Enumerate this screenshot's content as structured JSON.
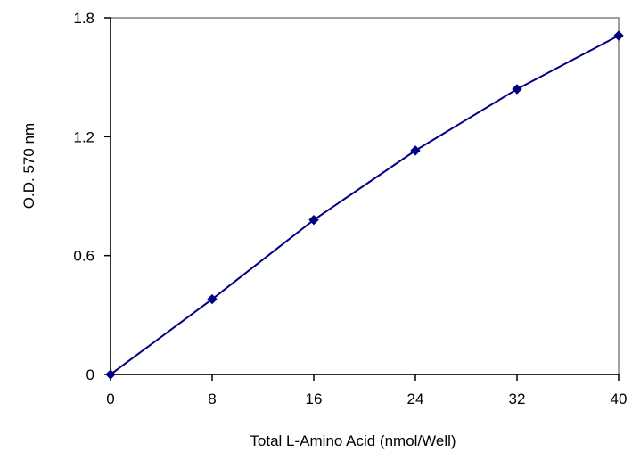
{
  "chart_data": {
    "type": "line",
    "xlabel": "Total L-Amino Acid (nmol/Well)",
    "ylabel": "O.D. 570 nm",
    "xlim": [
      0,
      40
    ],
    "ylim": [
      0,
      1.8
    ],
    "x_ticks": [
      "0",
      "8",
      "16",
      "24",
      "32",
      "40"
    ],
    "y_ticks": [
      "0",
      "0.6",
      "1.2",
      "1.8"
    ],
    "grid": false,
    "legend": "none",
    "series": [
      {
        "x": [
          0,
          8,
          16,
          24,
          32,
          40
        ],
        "values": [
          0,
          0.38,
          0.78,
          1.13,
          1.44,
          1.71
        ],
        "color": "#000080",
        "marker": "diamond"
      }
    ]
  }
}
